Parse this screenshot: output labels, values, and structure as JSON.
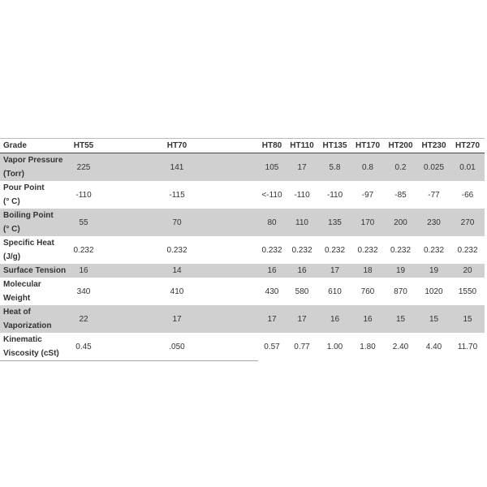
{
  "table": {
    "header": [
      "Grade",
      "HT55",
      "HT70",
      "HT80",
      "HT110",
      "HT135",
      "HT170",
      "HT200",
      "HT230",
      "HT270"
    ],
    "rows": [
      {
        "label": [
          "Vapor Pressure",
          "(Torr)"
        ],
        "cells": [
          "225",
          "141",
          "105",
          "17",
          "5.8",
          "0.8",
          "0.2",
          "0.025",
          "0.01"
        ]
      },
      {
        "label": [
          "Pour Point",
          "(° C)"
        ],
        "cells": [
          "-110",
          "-115",
          "<-110",
          "-110",
          "-110",
          "-97",
          "-85",
          "-77",
          "-66"
        ]
      },
      {
        "label": [
          "Boiling Point",
          "(° C)"
        ],
        "cells": [
          "55",
          "70",
          "80",
          "110",
          "135",
          "170",
          "200",
          "230",
          "270"
        ]
      },
      {
        "label": [
          "Specific Heat",
          "(J/g)"
        ],
        "cells": [
          "0.232",
          "0.232",
          "0.232",
          "0.232",
          "0.232",
          "0.232",
          "0.232",
          "0.232",
          "0.232"
        ]
      },
      {
        "label": [
          "Surface Tension"
        ],
        "cells": [
          "16",
          "14",
          "16",
          "16",
          "17",
          "18",
          "19",
          "19",
          "20"
        ]
      },
      {
        "label": [
          "Molecular Weight"
        ],
        "cells": [
          "340",
          "410",
          "430",
          "580",
          "610",
          "760",
          "870",
          "1020",
          "1550"
        ]
      },
      {
        "label": [
          "Heat of",
          "Vaporization"
        ],
        "cells": [
          "22",
          "17",
          "17",
          "17",
          "16",
          "16",
          "15",
          "15",
          "15"
        ]
      },
      {
        "label": [
          "Kinematic",
          "Viscosity (cSt)"
        ],
        "cells": [
          "0.45",
          ".050",
          "0.57",
          "0.77",
          "1.00",
          "1.80",
          "2.40",
          "4.40",
          "11.70"
        ]
      }
    ]
  }
}
